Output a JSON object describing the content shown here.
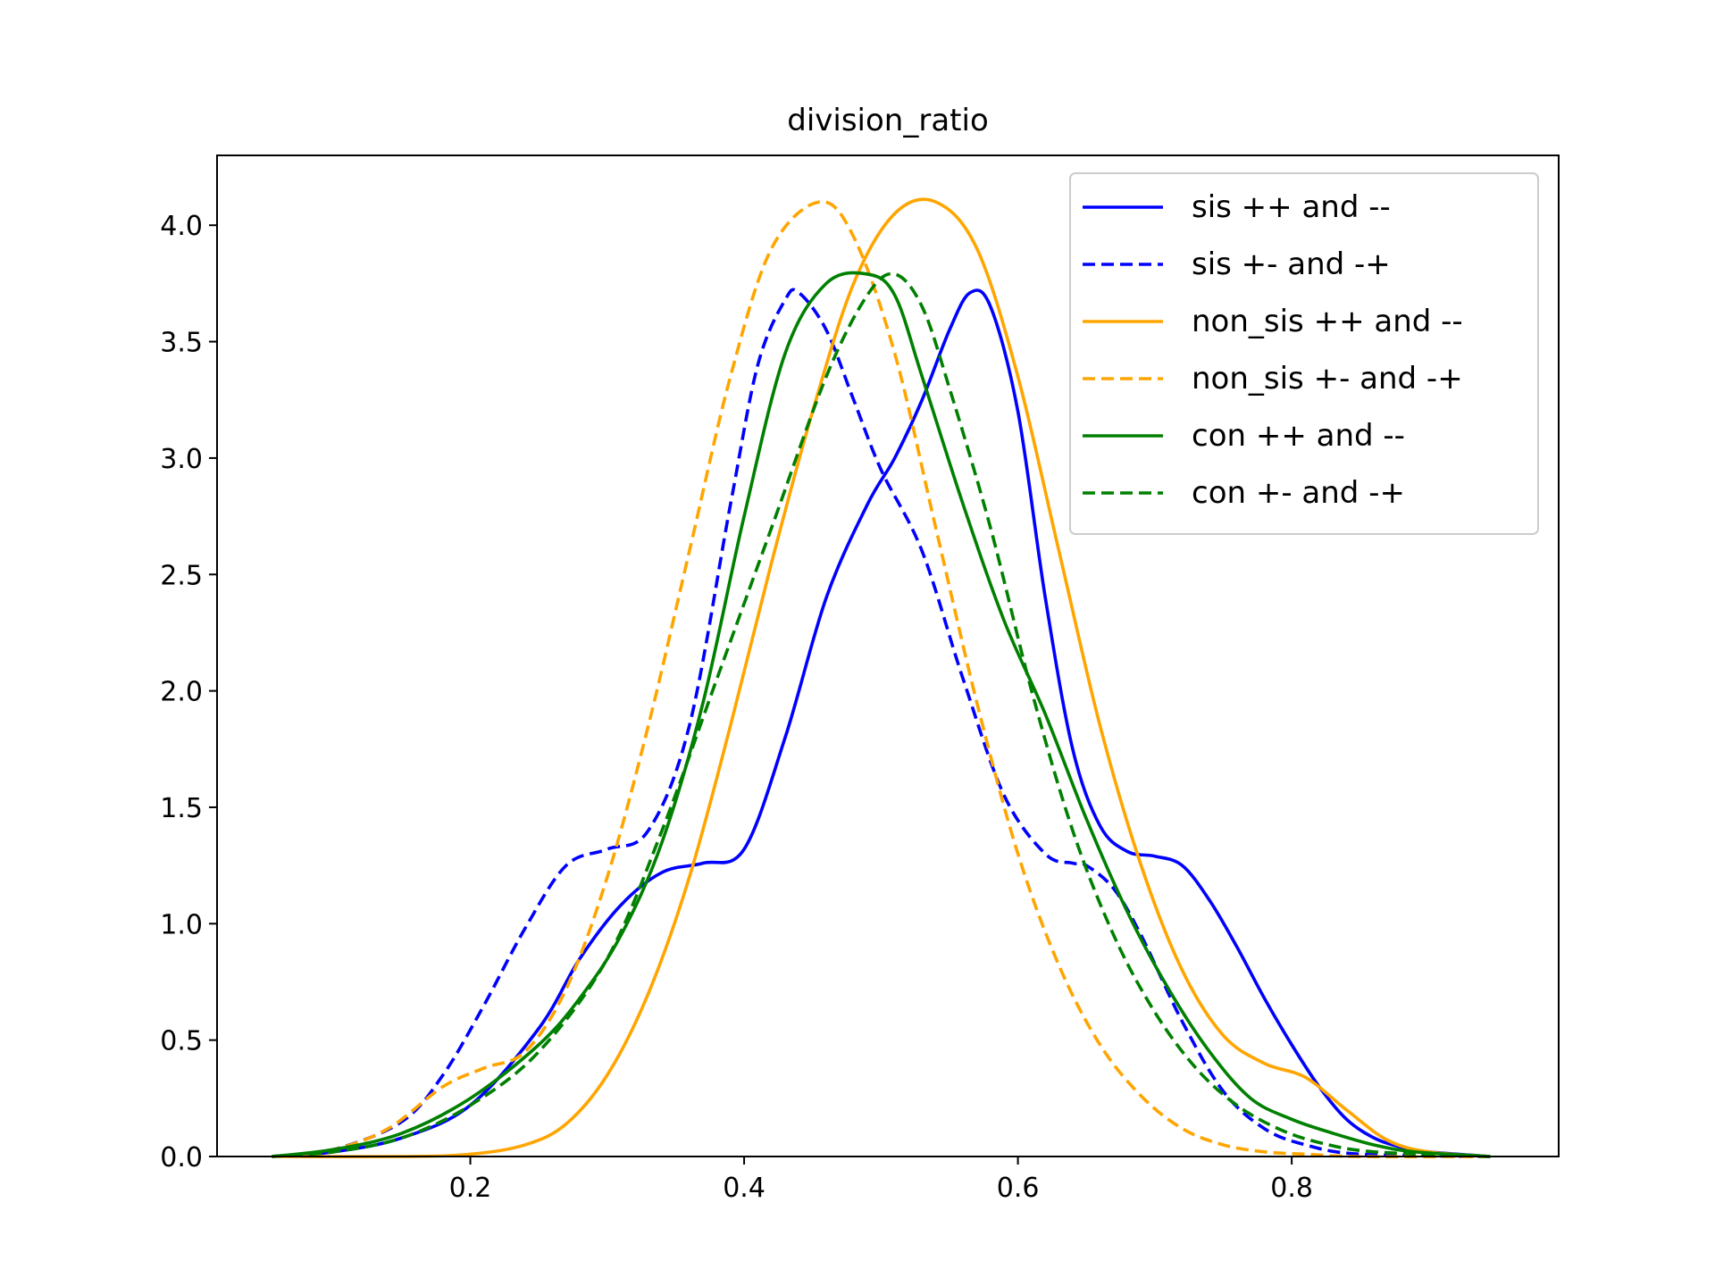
{
  "chart_data": {
    "type": "line",
    "title": "division_ratio",
    "xlabel": "",
    "ylabel": "",
    "xlim": [
      0.015,
      0.995
    ],
    "ylim": [
      0,
      4.3
    ],
    "xticks": [
      0.2,
      0.4,
      0.6,
      0.8
    ],
    "yticks": [
      0.0,
      0.5,
      1.0,
      1.5,
      2.0,
      2.5,
      3.0,
      3.5,
      4.0
    ],
    "xtick_labels": [
      "0.2",
      "0.4",
      "0.6",
      "0.8"
    ],
    "ytick_labels": [
      "0.0",
      "0.5",
      "1.0",
      "1.5",
      "2.0",
      "2.5",
      "3.0",
      "3.5",
      "4.0"
    ],
    "grid": false,
    "legend_position": "top-right",
    "series": [
      {
        "name": "sis ++ and --",
        "color": "#0000ff",
        "dash": "solid",
        "x": [
          0.055,
          0.1,
          0.15,
          0.2,
          0.25,
          0.28,
          0.31,
          0.34,
          0.37,
          0.4,
          0.43,
          0.46,
          0.49,
          0.51,
          0.53,
          0.55,
          0.565,
          0.58,
          0.6,
          0.62,
          0.64,
          0.66,
          0.68,
          0.7,
          0.72,
          0.74,
          0.76,
          0.78,
          0.8,
          0.82,
          0.84,
          0.86,
          0.88,
          0.9,
          0.945
        ],
        "y": [
          0.0,
          0.02,
          0.08,
          0.22,
          0.55,
          0.85,
          1.08,
          1.22,
          1.26,
          1.32,
          1.8,
          2.4,
          2.8,
          3.0,
          3.25,
          3.55,
          3.71,
          3.65,
          3.2,
          2.4,
          1.75,
          1.42,
          1.31,
          1.29,
          1.25,
          1.1,
          0.9,
          0.68,
          0.48,
          0.3,
          0.16,
          0.08,
          0.04,
          0.02,
          0.0
        ]
      },
      {
        "name": "sis +- and -+",
        "color": "#0000ff",
        "dash": "dashed",
        "x": [
          0.055,
          0.1,
          0.15,
          0.18,
          0.21,
          0.24,
          0.27,
          0.3,
          0.33,
          0.36,
          0.39,
          0.41,
          0.43,
          0.44,
          0.46,
          0.48,
          0.5,
          0.53,
          0.56,
          0.59,
          0.62,
          0.64,
          0.65,
          0.67,
          0.69,
          0.72,
          0.75,
          0.78,
          0.81,
          0.85,
          0.945
        ],
        "y": [
          0.0,
          0.03,
          0.15,
          0.35,
          0.65,
          0.98,
          1.25,
          1.32,
          1.4,
          1.85,
          2.8,
          3.4,
          3.68,
          3.71,
          3.55,
          3.25,
          2.95,
          2.6,
          2.05,
          1.55,
          1.3,
          1.26,
          1.25,
          1.15,
          0.95,
          0.58,
          0.28,
          0.12,
          0.05,
          0.01,
          0.0
        ]
      },
      {
        "name": "non_sis ++ and --",
        "color": "#ffa500",
        "dash": "solid",
        "x": [
          0.055,
          0.15,
          0.2,
          0.24,
          0.27,
          0.3,
          0.33,
          0.36,
          0.39,
          0.42,
          0.45,
          0.48,
          0.51,
          0.54,
          0.57,
          0.6,
          0.63,
          0.66,
          0.69,
          0.72,
          0.75,
          0.78,
          0.81,
          0.84,
          0.87,
          0.9,
          0.945
        ],
        "y": [
          0.0,
          0.0,
          0.01,
          0.05,
          0.14,
          0.35,
          0.7,
          1.2,
          1.85,
          2.55,
          3.2,
          3.75,
          4.05,
          4.1,
          3.9,
          3.35,
          2.6,
          1.85,
          1.25,
          0.8,
          0.52,
          0.4,
          0.34,
          0.2,
          0.07,
          0.02,
          0.0
        ]
      },
      {
        "name": "non_sis +- and -+",
        "color": "#ffa500",
        "dash": "dashed",
        "x": [
          0.055,
          0.1,
          0.14,
          0.18,
          0.21,
          0.24,
          0.27,
          0.3,
          0.33,
          0.36,
          0.39,
          0.42,
          0.455,
          0.48,
          0.51,
          0.54,
          0.57,
          0.6,
          0.63,
          0.66,
          0.69,
          0.72,
          0.75,
          0.78,
          0.81,
          0.85,
          0.945
        ],
        "y": [
          0.0,
          0.03,
          0.12,
          0.3,
          0.38,
          0.45,
          0.72,
          1.2,
          1.85,
          2.6,
          3.35,
          3.9,
          4.1,
          3.95,
          3.45,
          2.7,
          1.95,
          1.3,
          0.82,
          0.48,
          0.26,
          0.12,
          0.05,
          0.02,
          0.01,
          0.0,
          0.0
        ]
      },
      {
        "name": "con ++ and --",
        "color": "#008000",
        "dash": "solid",
        "x": [
          0.055,
          0.1,
          0.15,
          0.2,
          0.25,
          0.28,
          0.31,
          0.34,
          0.37,
          0.4,
          0.43,
          0.46,
          0.49,
          0.51,
          0.53,
          0.56,
          0.59,
          0.62,
          0.65,
          0.68,
          0.71,
          0.74,
          0.77,
          0.8,
          0.83,
          0.86,
          0.89,
          0.945
        ],
        "y": [
          0.0,
          0.03,
          0.1,
          0.25,
          0.48,
          0.68,
          0.95,
          1.35,
          1.95,
          2.75,
          3.45,
          3.75,
          3.79,
          3.7,
          3.35,
          2.8,
          2.3,
          1.9,
          1.45,
          1.05,
          0.72,
          0.45,
          0.25,
          0.16,
          0.1,
          0.05,
          0.02,
          0.0
        ]
      },
      {
        "name": "con +- and -+",
        "color": "#008000",
        "dash": "dashed",
        "x": [
          0.055,
          0.1,
          0.15,
          0.2,
          0.25,
          0.3,
          0.34,
          0.38,
          0.42,
          0.46,
          0.49,
          0.51,
          0.53,
          0.55,
          0.58,
          0.61,
          0.64,
          0.67,
          0.7,
          0.73,
          0.76,
          0.79,
          0.82,
          0.86,
          0.945
        ],
        "y": [
          0.0,
          0.02,
          0.08,
          0.22,
          0.45,
          0.85,
          1.4,
          2.05,
          2.7,
          3.35,
          3.7,
          3.79,
          3.65,
          3.3,
          2.7,
          2.0,
          1.4,
          0.95,
          0.62,
          0.38,
          0.22,
          0.12,
          0.06,
          0.02,
          0.0
        ]
      }
    ]
  }
}
